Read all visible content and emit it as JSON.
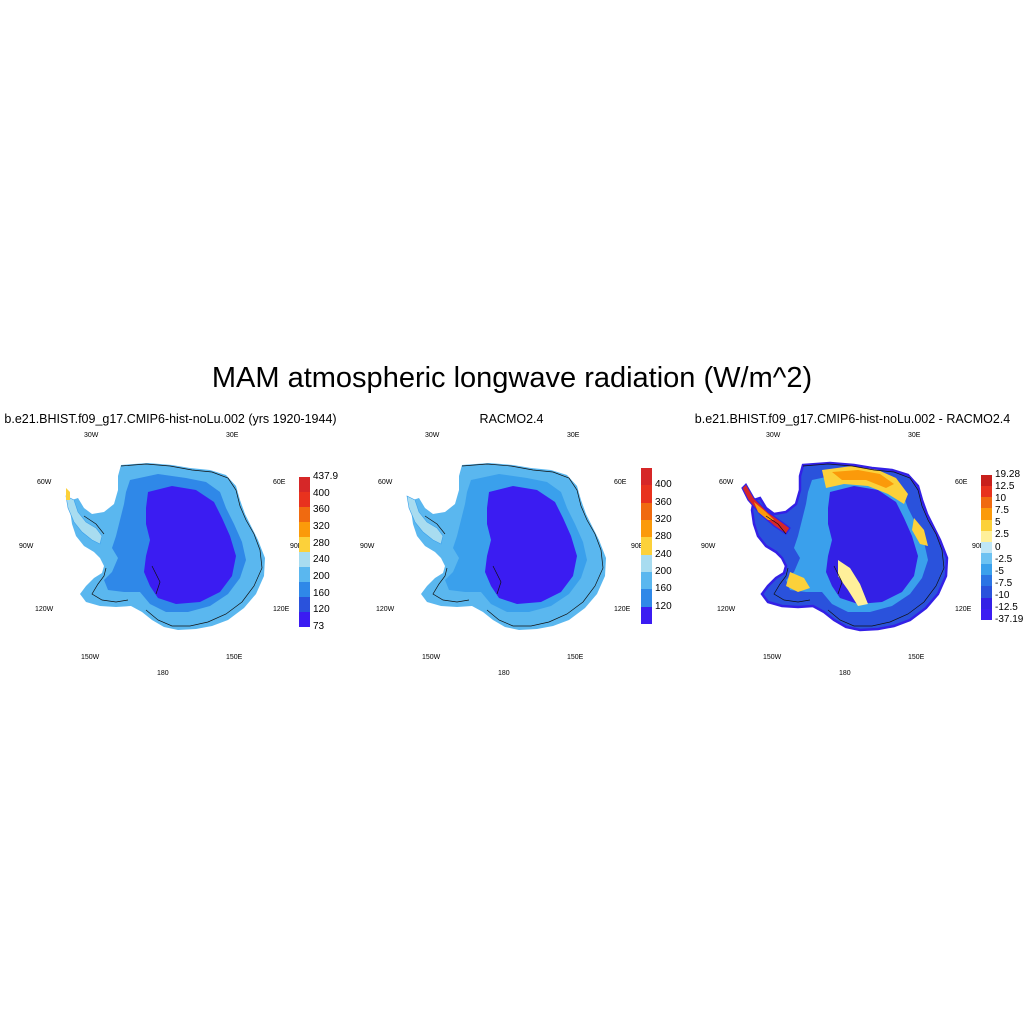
{
  "title": "MAM atmospheric longwave radiation (W/m^2)",
  "lon_labels": {
    "w30": "30W",
    "e30": "30E",
    "w60": "60W",
    "e60": "60E",
    "w90": "90W",
    "e90": "90E",
    "w120": "120W",
    "e120": "120E",
    "w150": "150W",
    "e150": "150E",
    "s180": "180"
  },
  "panels": [
    {
      "id": "model",
      "title": "b.e21.BHIST.f09_g17.CMIP6-hist-noLu.002 (yrs 1920-1944)",
      "colorbar": {
        "labels": [
          "437.9",
          "400",
          "360",
          "320",
          "280",
          "240",
          "200",
          "160",
          "120",
          "73"
        ],
        "colors": [
          "#d62728",
          "#e8321e",
          "#f06a10",
          "#fb9a0a",
          "#fcd13a",
          "#a8dcf0",
          "#5ab7ef",
          "#2f88e8",
          "#2a52dc",
          "#3b1cf2"
        ]
      }
    },
    {
      "id": "obs",
      "title": "RACMO2.4",
      "colorbar": {
        "labels": [
          "400",
          "360",
          "320",
          "280",
          "240",
          "200",
          "160",
          "120"
        ],
        "colors": [
          "#d62728",
          "#e8321e",
          "#f06a10",
          "#fb9a0a",
          "#fcd13a",
          "#a8dcf0",
          "#5ab7ef",
          "#2f88e8",
          "#3b1cf2"
        ]
      }
    },
    {
      "id": "diff",
      "title": "b.e21.BHIST.f09_g17.CMIP6-hist-noLu.002 - RACMO2.4",
      "colorbar": {
        "labels": [
          "19.28",
          "12.5",
          "10",
          "7.5",
          "5",
          "2.5",
          "0",
          "-2.5",
          "-5",
          "-7.5",
          "-10",
          "-12.5",
          "-37.19"
        ],
        "colors": [
          "#c8201c",
          "#e8321e",
          "#f06a10",
          "#fb9a0a",
          "#fcd13a",
          "#fff09a",
          "#bfe6f6",
          "#6dc2f2",
          "#3aa0ec",
          "#2b74e4",
          "#2a52dc",
          "#3320e6",
          "#3b1cf2"
        ]
      }
    }
  ]
}
